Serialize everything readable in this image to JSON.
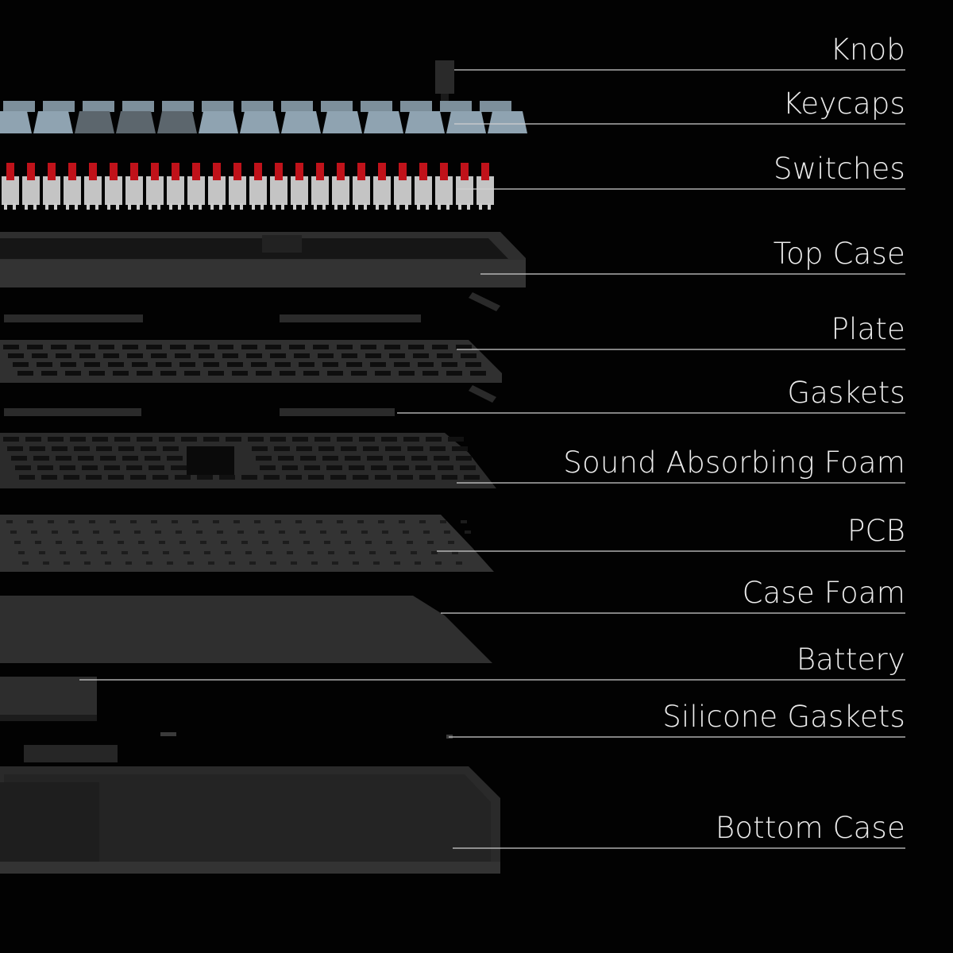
{
  "labels": [
    {
      "id": "knob",
      "text": "Knob"
    },
    {
      "id": "keycaps",
      "text": "Keycaps"
    },
    {
      "id": "switches",
      "text": "Switches"
    },
    {
      "id": "top-case",
      "text": "Top Case"
    },
    {
      "id": "plate",
      "text": "Plate"
    },
    {
      "id": "gaskets",
      "text": "Gaskets"
    },
    {
      "id": "sound-absorbing-foam",
      "text": "Sound Absorbing Foam"
    },
    {
      "id": "pcb",
      "text": "PCB"
    },
    {
      "id": "case-foam",
      "text": "Case Foam"
    },
    {
      "id": "battery",
      "text": "Battery"
    },
    {
      "id": "silicone-gaskets",
      "text": "Silicone Gaskets"
    },
    {
      "id": "bottom-case",
      "text": "Bottom Case"
    }
  ],
  "colors": {
    "background": "#020202",
    "keycap_light": "#8fa3b1",
    "keycap_dark": "#5c666d",
    "switch_stem": "#c0121a",
    "switch_housing": "#e6e6e6",
    "case": "#2c2c2c",
    "leader_line": "#cfcfcf"
  }
}
